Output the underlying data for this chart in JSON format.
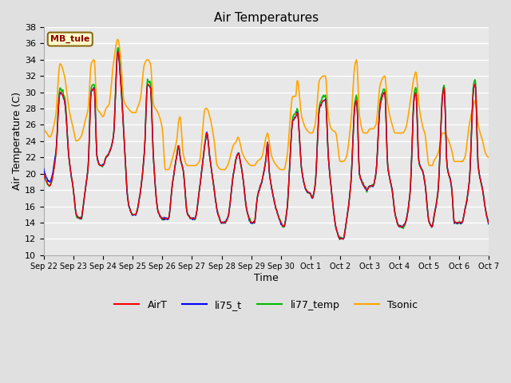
{
  "title": "Air Temperatures",
  "xlabel": "Time",
  "ylabel": "Air Temperature (C)",
  "ylim": [
    10,
    38
  ],
  "yticks": [
    10,
    12,
    14,
    16,
    18,
    20,
    22,
    24,
    26,
    28,
    30,
    32,
    34,
    36,
    38
  ],
  "bg_color": "#e0e0e0",
  "plot_bg_color": "#e8e8e8",
  "annotation_text": "MB_tule",
  "annotation_color": "#8b0000",
  "annotation_bg": "#ffffcc",
  "annotation_border": "#8b6914",
  "line_colors": {
    "AirT": "#ff0000",
    "li75_t": "#0000ff",
    "li77_temp": "#00bb00",
    "Tsonic": "#ffa500"
  },
  "line_widths": {
    "AirT": 1.0,
    "li75_t": 1.0,
    "li77_temp": 1.2,
    "Tsonic": 1.2
  },
  "x_tick_labels": [
    "Sep 22",
    "Sep 23",
    "Sep 24",
    "Sep 25",
    "Sep 26",
    "Sep 27",
    "Sep 28",
    "Sep 29",
    "Sep 30",
    "Oct 1",
    "Oct 2",
    "Oct 3",
    "Oct 4",
    "Oct 5",
    "Oct 6",
    "Oct 7"
  ],
  "grid_color": "#ffffff",
  "grid_lw": 1.0,
  "figsize": [
    6.4,
    4.8
  ],
  "dpi": 100
}
